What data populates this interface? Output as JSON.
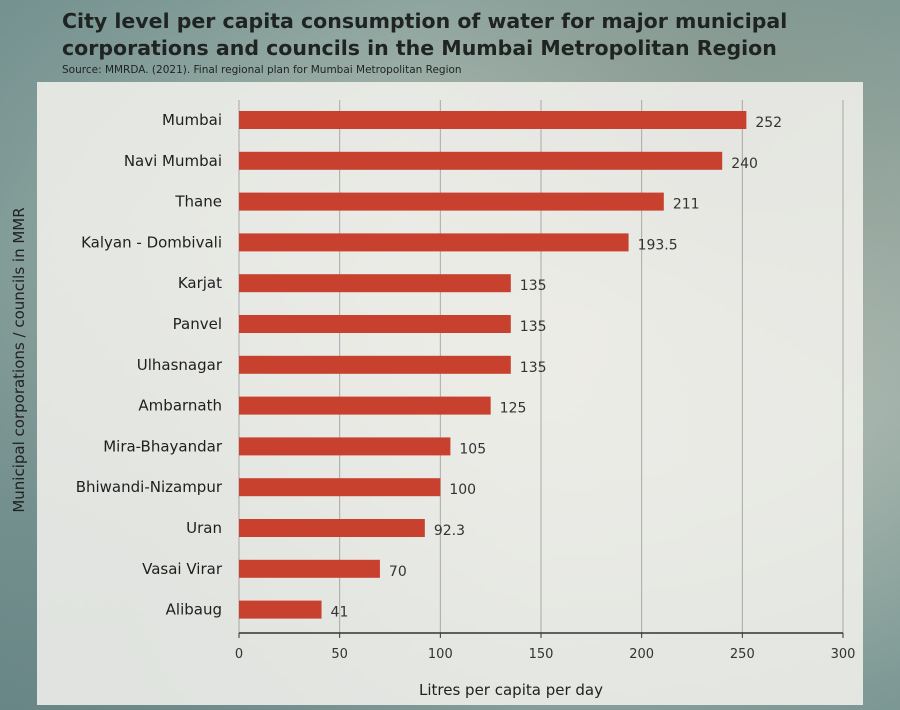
{
  "title": "City level per capita consumption of water for major municipal corporations and councils in the Mumbai Metropolitan Region",
  "source": "Source: MMRDA. (2021). Final regional plan for Mumbai Metropolitan Region",
  "colors": {
    "bar": "#c8412e",
    "grid": "#a8a8a8",
    "axis": "#333333"
  },
  "chart_data": {
    "type": "bar",
    "orientation": "horizontal",
    "categories": [
      "Mumbai",
      "Navi Mumbai",
      "Thane",
      "Kalyan - Dombivali",
      "Karjat",
      "Panvel",
      "Ulhasnagar",
      "Ambarnath",
      "Mira-Bhayandar",
      "Bhiwandi-Nizampur",
      "Uran",
      "Vasai Virar",
      "Alibaug"
    ],
    "values": [
      252,
      240,
      211,
      193.5,
      135,
      135,
      135,
      125,
      105,
      100,
      92.3,
      70,
      41
    ],
    "value_labels": [
      "252",
      "240",
      "211",
      "193.5",
      "135",
      "135",
      "135",
      "125",
      "105",
      "100",
      "92.3",
      "70",
      "41"
    ],
    "xlabel": "Litres per capita per day",
    "ylabel": "Municipal corporations / councils in MMR",
    "xlim": [
      0,
      300
    ],
    "xticks": [
      0,
      50,
      100,
      150,
      200,
      250,
      300
    ],
    "grid": "vertical"
  }
}
